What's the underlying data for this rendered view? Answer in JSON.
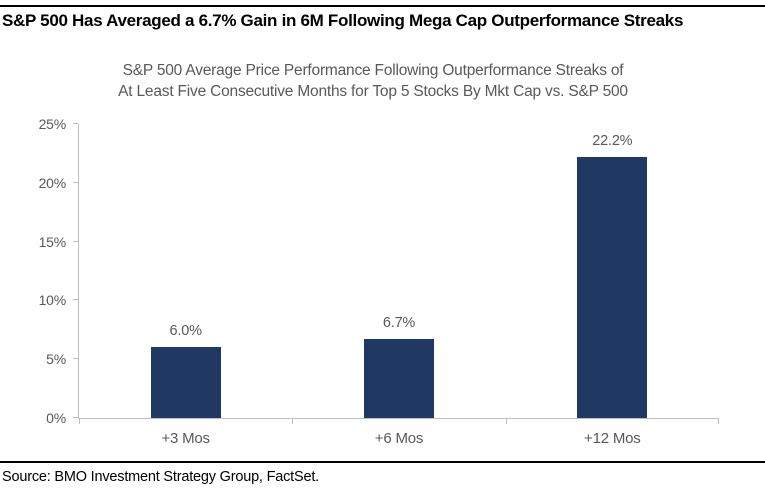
{
  "header": {
    "title": "S&P 500 Has Averaged a 6.7% Gain in 6M Following Mega Cap Outperformance Streaks"
  },
  "chart_data": {
    "type": "bar",
    "title_lines": [
      "S&P 500 Average Price Performance Following Outperformance Streaks of",
      "At Least Five Consecutive Months for Top 5 Stocks By Mkt Cap vs. S&P 500"
    ],
    "categories": [
      "+3 Mos",
      "+6 Mos",
      "+12 Mos"
    ],
    "values": [
      6.0,
      6.7,
      22.2
    ],
    "value_labels": [
      "6.0%",
      "6.7%",
      "22.2%"
    ],
    "ylabel": "",
    "xlabel": "",
    "ylim": [
      0,
      25
    ],
    "ytick_step": 5,
    "ytick_labels": [
      "0%",
      "5%",
      "10%",
      "15%",
      "20%",
      "25%"
    ],
    "grid": false,
    "legend": false,
    "bar_color": "#1F3864"
  },
  "footer": {
    "source": "Source: BMO Investment Strategy Group, FactSet."
  },
  "colors": {
    "bar": "#1F3864",
    "axis": "#BFBFBF",
    "gray_text": "#595959",
    "black": "#000000"
  }
}
